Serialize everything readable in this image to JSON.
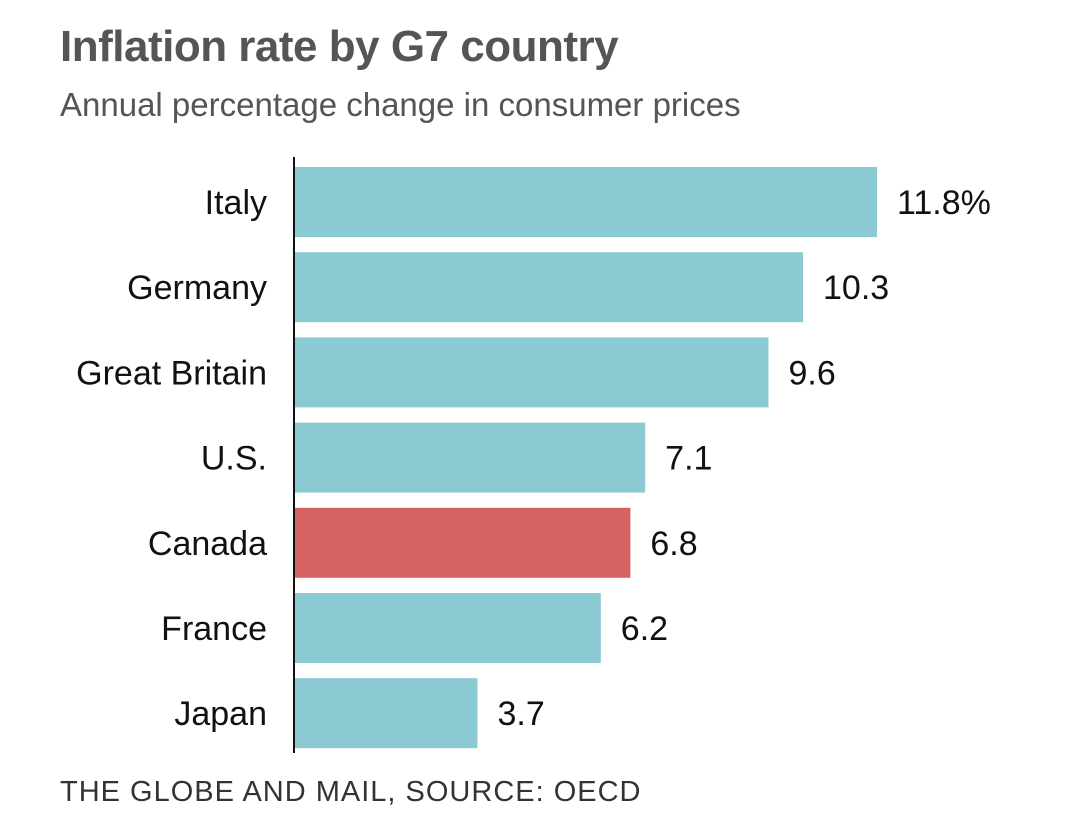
{
  "chart_data": {
    "type": "bar",
    "orientation": "horizontal",
    "title": "Inflation rate by G7 country",
    "subtitle": "Annual percentage change in consumer prices",
    "source": "THE GLOBE AND MAIL, SOURCE: OECD",
    "categories": [
      "Italy",
      "Germany",
      "Great Britain",
      "U.S.",
      "Canada",
      "France",
      "Japan"
    ],
    "values": [
      11.8,
      10.3,
      9.6,
      7.1,
      6.8,
      6.2,
      3.7
    ],
    "value_labels": [
      "11.8%",
      "10.3",
      "9.6",
      "7.1",
      "6.8",
      "6.2",
      "3.7"
    ],
    "highlight": "Canada",
    "colors": {
      "default": "#8ccad3",
      "highlight": "#d66262"
    },
    "xlim": [
      0,
      11.8
    ],
    "grid": false
  }
}
